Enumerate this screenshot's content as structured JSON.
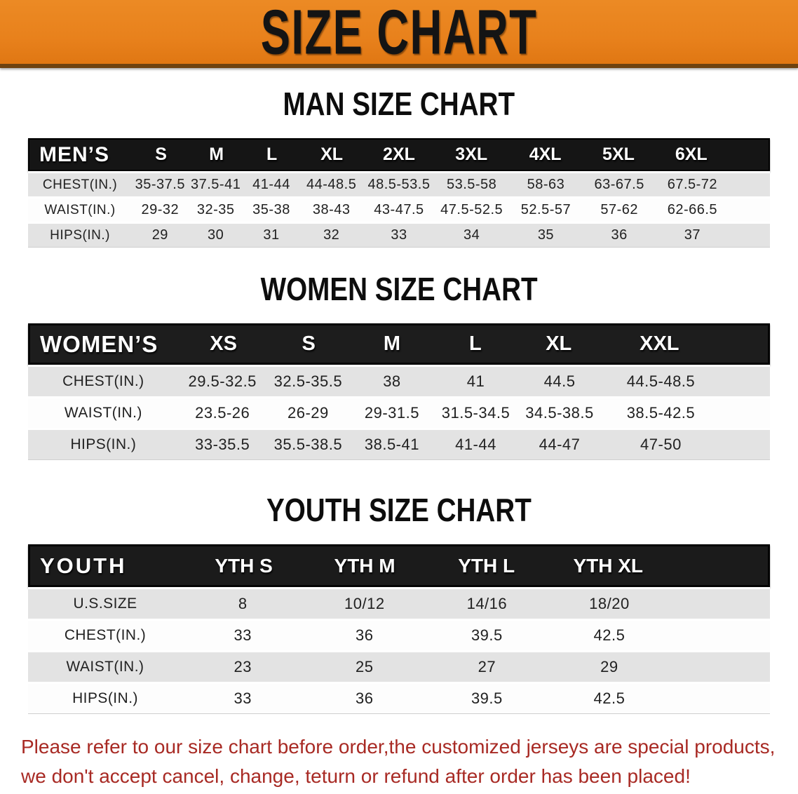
{
  "banner": {
    "title": "SIZE CHART",
    "bg_color": "#e8811c",
    "text_color": "#141414"
  },
  "colors": {
    "header_bar": "#1b1b1b",
    "row_gray": "#e3e3e3",
    "row_white": "#ffffff",
    "disclaimer_red": "#a82a24"
  },
  "sections": [
    {
      "id": "men",
      "heading": "MAN SIZE CHART",
      "header_label": "MEN’S",
      "columns": [
        "S",
        "M",
        "L",
        "XL",
        "2XL",
        "3XL",
        "4XL",
        "5XL",
        "6XL"
      ],
      "rows": [
        {
          "label": "CHEST(IN.)",
          "values": [
            "35-37.5",
            "37.5-41",
            "41-44",
            "44-48.5",
            "48.5-53.5",
            "53.5-58",
            "58-63",
            "63-67.5",
            "67.5-72"
          ]
        },
        {
          "label": "WAIST(IN.)",
          "values": [
            "29-32",
            "32-35",
            "35-38",
            "38-43",
            "43-47.5",
            "47.5-52.5",
            "52.5-57",
            "57-62",
            "62-66.5"
          ]
        },
        {
          "label": "HIPS(IN.)",
          "values": [
            "29",
            "30",
            "31",
            "32",
            "33",
            "34",
            "35",
            "36",
            "37"
          ]
        }
      ]
    },
    {
      "id": "women",
      "heading": "WOMEN SIZE CHART",
      "header_label": "WOMEN’S",
      "columns": [
        "XS",
        "S",
        "M",
        "L",
        "XL",
        "XXL"
      ],
      "rows": [
        {
          "label": "CHEST(IN.)",
          "values": [
            "29.5-32.5",
            "32.5-35.5",
            "38",
            "41",
            "44.5",
            "44.5-48.5"
          ]
        },
        {
          "label": "WAIST(IN.)",
          "values": [
            "23.5-26",
            "26-29",
            "29-31.5",
            "31.5-34.5",
            "34.5-38.5",
            "38.5-42.5"
          ]
        },
        {
          "label": "HIPS(IN.)",
          "values": [
            "33-35.5",
            "35.5-38.5",
            "38.5-41",
            "41-44",
            "44-47",
            "47-50"
          ]
        }
      ]
    },
    {
      "id": "youth",
      "heading": "YOUTH SIZE CHART",
      "header_label": "YOUTH",
      "columns": [
        "YTH S",
        "YTH M",
        "YTH L",
        "YTH XL"
      ],
      "rows": [
        {
          "label": "U.S.SIZE",
          "values": [
            "8",
            "10/12",
            "14/16",
            "18/20"
          ]
        },
        {
          "label": "CHEST(IN.)",
          "values": [
            "33",
            "36",
            "39.5",
            "42.5"
          ]
        },
        {
          "label": "WAIST(IN.)",
          "values": [
            "23",
            "25",
            "27",
            "29"
          ]
        },
        {
          "label": "HIPS(IN.)",
          "values": [
            "33",
            "36",
            "39.5",
            "42.5"
          ]
        }
      ]
    }
  ],
  "disclaimer": {
    "line1": "Please refer to our size chart before order,the customized jerseys are special products,",
    "line2": "we don't accept cancel, change, teturn or refund after order has been placed!"
  }
}
